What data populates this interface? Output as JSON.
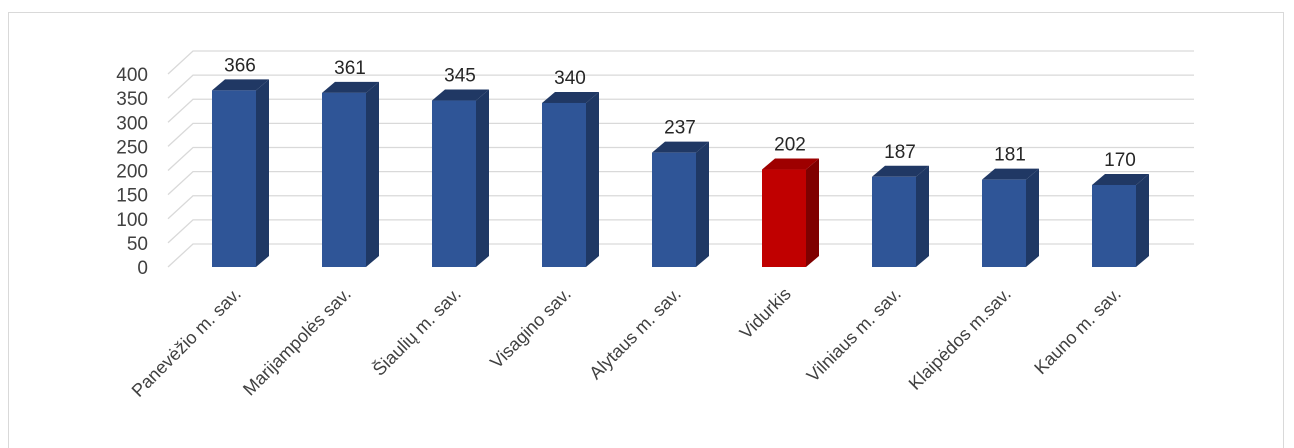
{
  "chart_data": {
    "type": "bar",
    "categories": [
      "Panevėžio m. sav.",
      "Marijampolės sav.",
      "Šiaulių m. sav.",
      "Visagino sav.",
      "Alytaus m. sav.",
      "Vidurkis",
      "Vilniaus m. sav.",
      "Klaipėdos m.sav.",
      "Kauno m. sav."
    ],
    "values": [
      366,
      361,
      345,
      340,
      237,
      202,
      187,
      181,
      170
    ],
    "highlight_index": 5,
    "ylim": [
      0,
      400
    ],
    "y_ticks": [
      0,
      50,
      100,
      150,
      200,
      250,
      300,
      350,
      400
    ],
    "grid": true,
    "legend": "none",
    "style": "3d-column",
    "colors": {
      "bar": "#2f5597",
      "bar_side": "#1f3864",
      "bar_top": "#203864",
      "highlight": "#c00000",
      "highlight_side": "#7f0000",
      "highlight_top": "#9e0000",
      "grid": "#d9d9d9"
    }
  }
}
